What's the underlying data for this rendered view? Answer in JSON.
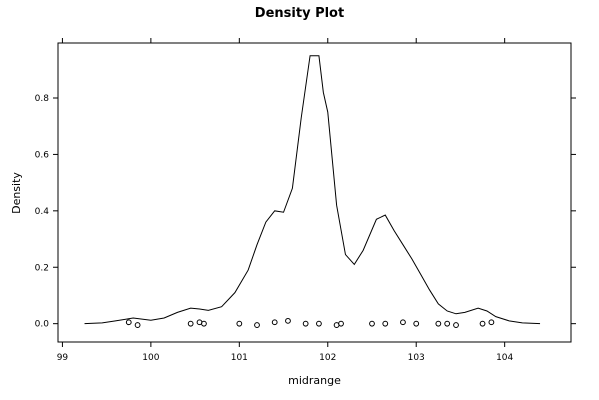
{
  "chart_data": {
    "type": "line",
    "title": "Density Plot",
    "xlabel": "midrange",
    "ylabel": "Density",
    "xlim": [
      98.95,
      104.75
    ],
    "ylim": [
      -0.065,
      0.995
    ],
    "x_ticks": [
      99,
      100,
      101,
      102,
      103,
      104
    ],
    "y_ticks": [
      0.0,
      0.2,
      0.4,
      0.6,
      0.8
    ],
    "grid": false,
    "legend": "none",
    "series": [
      {
        "x": [
          99.25,
          99.45,
          99.6,
          99.8,
          100.0,
          100.15,
          100.3,
          100.45,
          100.55,
          100.65,
          100.8,
          100.95,
          101.1,
          101.2,
          101.3,
          101.4,
          101.5,
          101.6,
          101.7,
          101.8,
          101.9,
          101.95,
          102.0,
          102.1,
          102.2,
          102.3,
          102.4,
          102.55,
          102.65,
          102.75,
          102.85,
          102.95,
          103.05,
          103.15,
          103.25,
          103.35,
          103.45,
          103.55,
          103.7,
          103.8,
          103.9,
          104.05,
          104.2,
          104.4
        ],
        "y": [
          0.0,
          0.003,
          0.01,
          0.02,
          0.012,
          0.02,
          0.04,
          0.055,
          0.052,
          0.047,
          0.06,
          0.11,
          0.19,
          0.28,
          0.36,
          0.4,
          0.395,
          0.48,
          0.73,
          0.95,
          0.95,
          0.82,
          0.75,
          0.42,
          0.245,
          0.21,
          0.26,
          0.37,
          0.385,
          0.33,
          0.28,
          0.23,
          0.175,
          0.12,
          0.07,
          0.045,
          0.035,
          0.04,
          0.055,
          0.045,
          0.025,
          0.01,
          0.003,
          0.0
        ]
      }
    ],
    "rug": {
      "x": [
        99.75,
        99.85,
        100.45,
        100.55,
        100.6,
        101.0,
        101.2,
        101.4,
        101.55,
        101.75,
        101.9,
        102.1,
        102.15,
        102.5,
        102.65,
        102.85,
        103.0,
        103.25,
        103.35,
        103.45,
        103.75,
        103.85
      ],
      "y": [
        0.005,
        -0.005,
        0.0,
        0.005,
        0.0,
        0.0,
        -0.005,
        0.005,
        0.01,
        0.0,
        0.0,
        -0.005,
        0.0,
        0.0,
        0.0,
        0.005,
        0.0,
        0.0,
        0.0,
        -0.005,
        0.0,
        0.005
      ]
    }
  }
}
